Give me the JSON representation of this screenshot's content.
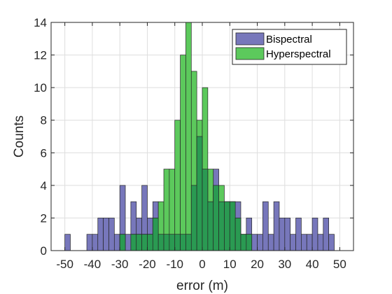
{
  "chart_data": {
    "type": "bar",
    "subtype": "overlapping-histogram",
    "title": "",
    "xlabel": "error (m)",
    "ylabel": "Counts",
    "xlim": [
      -55,
      55
    ],
    "ylim": [
      0,
      14
    ],
    "x_ticks": [
      -50,
      -40,
      -30,
      -20,
      -10,
      0,
      10,
      20,
      30,
      40,
      50
    ],
    "y_ticks": [
      0,
      2,
      4,
      6,
      8,
      10,
      12,
      14
    ],
    "grid": true,
    "legend_position": "top-right",
    "bin_width": 2,
    "series": [
      {
        "name": "Bispectral",
        "color": "#7777bb",
        "bins": [
          {
            "x0": -50,
            "x1": -48,
            "count": 1
          },
          {
            "x0": -42,
            "x1": -40,
            "count": 1
          },
          {
            "x0": -40,
            "x1": -38,
            "count": 1
          },
          {
            "x0": -38,
            "x1": -36,
            "count": 2
          },
          {
            "x0": -36,
            "x1": -34,
            "count": 2
          },
          {
            "x0": -34,
            "x1": -32,
            "count": 2
          },
          {
            "x0": -32,
            "x1": -30,
            "count": 1
          },
          {
            "x0": -30,
            "x1": -28,
            "count": 4
          },
          {
            "x0": -28,
            "x1": -26,
            "count": 1
          },
          {
            "x0": -26,
            "x1": -24,
            "count": 3
          },
          {
            "x0": -24,
            "x1": -22,
            "count": 2
          },
          {
            "x0": -22,
            "x1": -20,
            "count": 4
          },
          {
            "x0": -20,
            "x1": -18,
            "count": 2
          },
          {
            "x0": -18,
            "x1": -16,
            "count": 3
          },
          {
            "x0": -16,
            "x1": -14,
            "count": 1
          },
          {
            "x0": -14,
            "x1": -12,
            "count": 1
          },
          {
            "x0": -12,
            "x1": -10,
            "count": 1
          },
          {
            "x0": -10,
            "x1": -8,
            "count": 1
          },
          {
            "x0": -8,
            "x1": -6,
            "count": 1
          },
          {
            "x0": -6,
            "x1": -4,
            "count": 1
          },
          {
            "x0": -4,
            "x1": -2,
            "count": 4
          },
          {
            "x0": -2,
            "x1": 0,
            "count": 7
          },
          {
            "x0": 0,
            "x1": 2,
            "count": 5
          },
          {
            "x0": 2,
            "x1": 4,
            "count": 3
          },
          {
            "x0": 4,
            "x1": 6,
            "count": 5
          },
          {
            "x0": 6,
            "x1": 8,
            "count": 3
          },
          {
            "x0": 8,
            "x1": 10,
            "count": 3
          },
          {
            "x0": 10,
            "x1": 12,
            "count": 3
          },
          {
            "x0": 12,
            "x1": 14,
            "count": 3
          },
          {
            "x0": 14,
            "x1": 16,
            "count": 1
          },
          {
            "x0": 16,
            "x1": 18,
            "count": 2
          },
          {
            "x0": 18,
            "x1": 20,
            "count": 1
          },
          {
            "x0": 20,
            "x1": 22,
            "count": 1
          },
          {
            "x0": 22,
            "x1": 24,
            "count": 3
          },
          {
            "x0": 24,
            "x1": 26,
            "count": 1
          },
          {
            "x0": 26,
            "x1": 28,
            "count": 3
          },
          {
            "x0": 28,
            "x1": 30,
            "count": 2
          },
          {
            "x0": 30,
            "x1": 32,
            "count": 2
          },
          {
            "x0": 32,
            "x1": 34,
            "count": 1
          },
          {
            "x0": 34,
            "x1": 36,
            "count": 2
          },
          {
            "x0": 36,
            "x1": 38,
            "count": 1
          },
          {
            "x0": 38,
            "x1": 40,
            "count": 1
          },
          {
            "x0": 40,
            "x1": 42,
            "count": 2
          },
          {
            "x0": 42,
            "x1": 44,
            "count": 1
          },
          {
            "x0": 44,
            "x1": 46,
            "count": 2
          },
          {
            "x0": 46,
            "x1": 48,
            "count": 1
          }
        ]
      },
      {
        "name": "Hyperspectral",
        "color": "#5cc95c",
        "bins": [
          {
            "x0": -30,
            "x1": -28,
            "count": 1
          },
          {
            "x0": -26,
            "x1": -24,
            "count": 1
          },
          {
            "x0": -24,
            "x1": -22,
            "count": 1
          },
          {
            "x0": -22,
            "x1": -20,
            "count": 1
          },
          {
            "x0": -20,
            "x1": -18,
            "count": 1
          },
          {
            "x0": -18,
            "x1": -16,
            "count": 2
          },
          {
            "x0": -16,
            "x1": -14,
            "count": 3
          },
          {
            "x0": -14,
            "x1": -12,
            "count": 5
          },
          {
            "x0": -12,
            "x1": -10,
            "count": 5
          },
          {
            "x0": -10,
            "x1": -8,
            "count": 8
          },
          {
            "x0": -8,
            "x1": -6,
            "count": 12
          },
          {
            "x0": -6,
            "x1": -4,
            "count": 14
          },
          {
            "x0": -4,
            "x1": -2,
            "count": 11
          },
          {
            "x0": -2,
            "x1": 0,
            "count": 8
          },
          {
            "x0": 0,
            "x1": 2,
            "count": 10
          },
          {
            "x0": 2,
            "x1": 4,
            "count": 5
          },
          {
            "x0": 4,
            "x1": 6,
            "count": 4
          },
          {
            "x0": 6,
            "x1": 8,
            "count": 4
          },
          {
            "x0": 8,
            "x1": 10,
            "count": 3
          },
          {
            "x0": 10,
            "x1": 12,
            "count": 3
          },
          {
            "x0": 12,
            "x1": 14,
            "count": 2
          },
          {
            "x0": 14,
            "x1": 16,
            "count": 1
          },
          {
            "x0": 16,
            "x1": 18,
            "count": 1
          }
        ]
      }
    ]
  }
}
